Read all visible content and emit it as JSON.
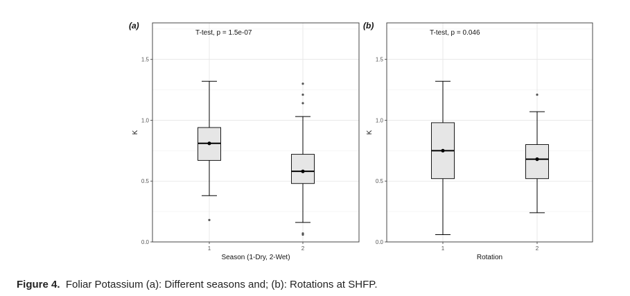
{
  "caption": {
    "label": "Figure 4.",
    "text": "Foliar Potassium (a): Different seasons and; (b): Rotations at SHFP."
  },
  "chart_data": [
    {
      "type": "boxplot",
      "panel_label": "(a)",
      "annotation": "T-test, p = 1.5e-07",
      "xlabel": "Season (1-Dry, 2-Wet)",
      "ylabel": "K",
      "categories": [
        "1",
        "2"
      ],
      "ylim": [
        0,
        1.8
      ],
      "yticks": [
        "0.0",
        "0.5",
        "1.0",
        "1.5"
      ],
      "grid": true,
      "boxes": [
        {
          "min": 0.38,
          "q1": 0.67,
          "median": 0.81,
          "q3": 0.94,
          "max": 1.32,
          "mean": 0.81,
          "outliers": [
            0.18
          ]
        },
        {
          "min": 0.16,
          "q1": 0.48,
          "median": 0.58,
          "q3": 0.72,
          "max": 1.03,
          "mean": 0.58,
          "outliers": [
            0.06,
            0.07,
            1.14,
            1.21,
            1.3
          ]
        }
      ]
    },
    {
      "type": "boxplot",
      "panel_label": "(b)",
      "annotation": "T-test, p = 0.046",
      "xlabel": "Rotation",
      "ylabel": "K",
      "categories": [
        "1",
        "2"
      ],
      "ylim": [
        0,
        1.8
      ],
      "yticks": [
        "0.0",
        "0.5",
        "1.0",
        "1.5"
      ],
      "grid": true,
      "boxes": [
        {
          "min": 0.06,
          "q1": 0.52,
          "median": 0.75,
          "q3": 0.98,
          "max": 1.32,
          "mean": 0.75,
          "outliers": []
        },
        {
          "min": 0.24,
          "q1": 0.52,
          "median": 0.68,
          "q3": 0.8,
          "max": 1.07,
          "mean": 0.68,
          "outliers": [
            1.21
          ]
        }
      ]
    }
  ]
}
